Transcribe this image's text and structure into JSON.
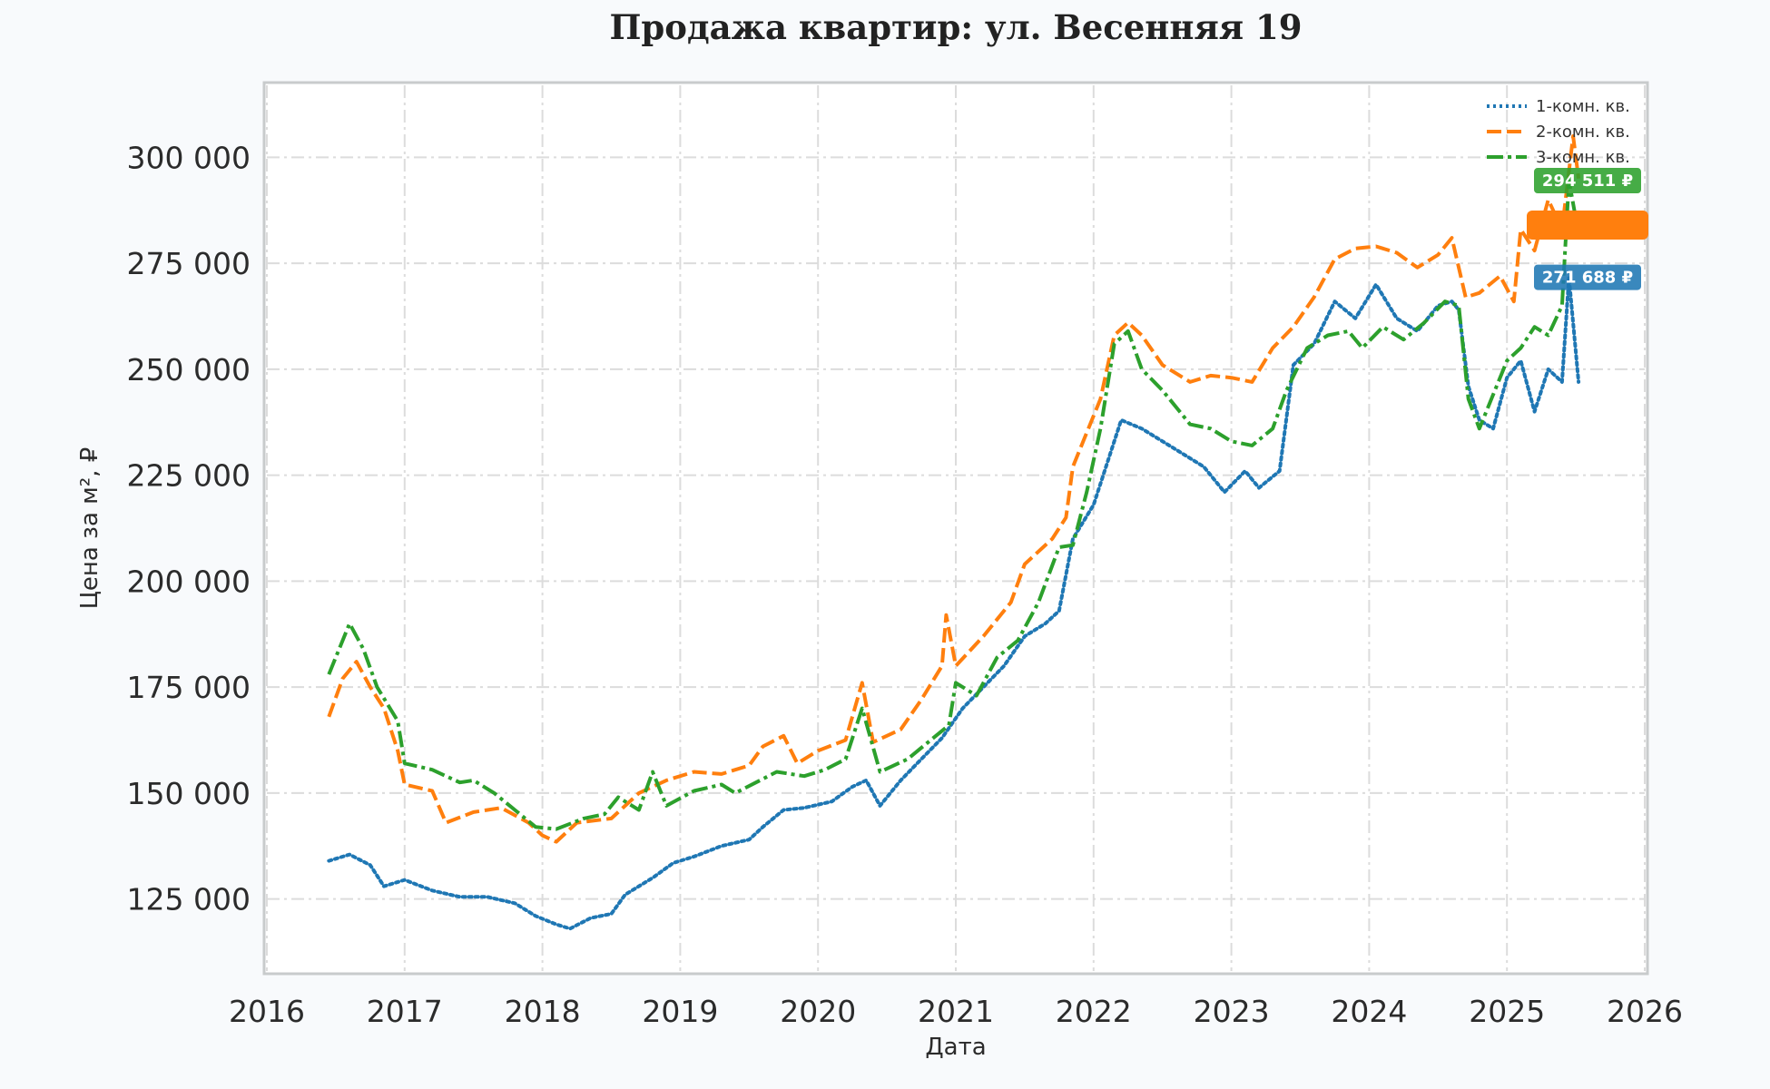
{
  "chart_data": {
    "type": "line",
    "title": "Продажа квартир: ул. Весенняя 19",
    "xlabel": "Дата",
    "ylabel": "Цена за м², ₽",
    "xlim": [
      2016,
      2026
    ],
    "ylim": [
      108000,
      317000
    ],
    "x_ticks": [
      "2016",
      "2017",
      "2018",
      "2019",
      "2020",
      "2021",
      "2022",
      "2023",
      "2024",
      "2025",
      "2026"
    ],
    "y_ticks": [
      125000,
      150000,
      175000,
      200000,
      225000,
      250000,
      275000,
      300000
    ],
    "y_tick_labels": [
      "125 000",
      "150 000",
      "175 000",
      "200 000",
      "225 000",
      "250 000",
      "275 000",
      "300 000"
    ],
    "grid": true,
    "legend_position": "top-right",
    "series": [
      {
        "name": "1-комн. кв.",
        "color": "#1f77b4",
        "style": "dotted",
        "end_label": "271 688 ₽",
        "points": [
          [
            2016.45,
            134000
          ],
          [
            2016.6,
            135500
          ],
          [
            2016.75,
            133000
          ],
          [
            2016.85,
            128000
          ],
          [
            2017.0,
            129500
          ],
          [
            2017.2,
            127000
          ],
          [
            2017.4,
            125500
          ],
          [
            2017.6,
            125500
          ],
          [
            2017.8,
            124000
          ],
          [
            2017.95,
            121000
          ],
          [
            2018.1,
            119000
          ],
          [
            2018.2,
            118000
          ],
          [
            2018.35,
            120500
          ],
          [
            2018.5,
            121500
          ],
          [
            2018.6,
            126000
          ],
          [
            2018.8,
            130000
          ],
          [
            2018.95,
            133500
          ],
          [
            2019.1,
            135000
          ],
          [
            2019.3,
            137500
          ],
          [
            2019.5,
            139000
          ],
          [
            2019.6,
            142000
          ],
          [
            2019.75,
            146000
          ],
          [
            2019.9,
            146500
          ],
          [
            2020.1,
            148000
          ],
          [
            2020.25,
            151500
          ],
          [
            2020.35,
            153000
          ],
          [
            2020.45,
            147000
          ],
          [
            2020.6,
            153000
          ],
          [
            2020.75,
            158000
          ],
          [
            2020.9,
            163000
          ],
          [
            2021.05,
            170000
          ],
          [
            2021.2,
            175000
          ],
          [
            2021.35,
            180000
          ],
          [
            2021.5,
            187000
          ],
          [
            2021.65,
            190000
          ],
          [
            2021.75,
            193000
          ],
          [
            2021.85,
            210000
          ],
          [
            2022.0,
            218000
          ],
          [
            2022.1,
            228000
          ],
          [
            2022.2,
            238000
          ],
          [
            2022.35,
            236000
          ],
          [
            2022.5,
            233000
          ],
          [
            2022.65,
            230000
          ],
          [
            2022.8,
            227000
          ],
          [
            2022.95,
            221000
          ],
          [
            2023.1,
            226000
          ],
          [
            2023.2,
            222000
          ],
          [
            2023.35,
            226000
          ],
          [
            2023.45,
            251000
          ],
          [
            2023.6,
            256000
          ],
          [
            2023.75,
            266000
          ],
          [
            2023.9,
            262000
          ],
          [
            2024.05,
            270000
          ],
          [
            2024.2,
            262000
          ],
          [
            2024.35,
            259000
          ],
          [
            2024.5,
            265000
          ],
          [
            2024.6,
            266000
          ],
          [
            2024.65,
            264000
          ],
          [
            2024.72,
            246000
          ],
          [
            2024.8,
            238000
          ],
          [
            2024.9,
            236000
          ],
          [
            2025.0,
            248000
          ],
          [
            2025.1,
            252000
          ],
          [
            2025.2,
            240000
          ],
          [
            2025.3,
            250000
          ],
          [
            2025.4,
            247000
          ],
          [
            2025.45,
            271688
          ],
          [
            2025.52,
            247000
          ]
        ]
      },
      {
        "name": "2-комн. кв.",
        "color": "#ff7f0e",
        "style": "dashed",
        "end_label": "",
        "points": [
          [
            2016.45,
            168000
          ],
          [
            2016.55,
            177000
          ],
          [
            2016.65,
            181000
          ],
          [
            2016.75,
            175000
          ],
          [
            2016.85,
            170000
          ],
          [
            2016.95,
            160000
          ],
          [
            2017.0,
            152000
          ],
          [
            2017.2,
            150500
          ],
          [
            2017.3,
            143000
          ],
          [
            2017.5,
            145500
          ],
          [
            2017.7,
            146500
          ],
          [
            2017.9,
            143000
          ],
          [
            2018.0,
            140000
          ],
          [
            2018.1,
            138500
          ],
          [
            2018.25,
            143000
          ],
          [
            2018.5,
            144000
          ],
          [
            2018.7,
            150000
          ],
          [
            2018.9,
            153000
          ],
          [
            2019.1,
            155000
          ],
          [
            2019.3,
            154500
          ],
          [
            2019.5,
            156500
          ],
          [
            2019.6,
            161000
          ],
          [
            2019.75,
            163500
          ],
          [
            2019.85,
            157000
          ],
          [
            2020.0,
            160000
          ],
          [
            2020.2,
            162500
          ],
          [
            2020.32,
            176000
          ],
          [
            2020.4,
            162000
          ],
          [
            2020.6,
            165000
          ],
          [
            2020.75,
            172000
          ],
          [
            2020.9,
            180000
          ],
          [
            2020.93,
            192000
          ],
          [
            2021.0,
            180000
          ],
          [
            2021.2,
            187000
          ],
          [
            2021.4,
            195000
          ],
          [
            2021.5,
            204000
          ],
          [
            2021.7,
            210000
          ],
          [
            2021.8,
            215000
          ],
          [
            2021.85,
            227000
          ],
          [
            2021.95,
            235000
          ],
          [
            2022.05,
            243000
          ],
          [
            2022.15,
            258000
          ],
          [
            2022.25,
            261000
          ],
          [
            2022.35,
            258000
          ],
          [
            2022.5,
            251000
          ],
          [
            2022.7,
            247000
          ],
          [
            2022.85,
            248500
          ],
          [
            2023.0,
            248000
          ],
          [
            2023.15,
            247000
          ],
          [
            2023.3,
            255000
          ],
          [
            2023.45,
            260000
          ],
          [
            2023.6,
            267000
          ],
          [
            2023.75,
            276000
          ],
          [
            2023.9,
            278500
          ],
          [
            2024.05,
            279000
          ],
          [
            2024.2,
            277500
          ],
          [
            2024.35,
            274000
          ],
          [
            2024.5,
            277000
          ],
          [
            2024.6,
            281000
          ],
          [
            2024.7,
            267000
          ],
          [
            2024.8,
            268000
          ],
          [
            2024.95,
            272000
          ],
          [
            2025.05,
            266000
          ],
          [
            2025.1,
            283000
          ],
          [
            2025.2,
            278000
          ],
          [
            2025.3,
            290000
          ],
          [
            2025.4,
            283000
          ],
          [
            2025.48,
            305000
          ],
          [
            2025.52,
            295000
          ]
        ]
      },
      {
        "name": "3-комн. кв.",
        "color": "#2ca02c",
        "style": "dashdot",
        "end_label": "294 511 ₽",
        "points": [
          [
            2016.45,
            178000
          ],
          [
            2016.6,
            190000
          ],
          [
            2016.7,
            184000
          ],
          [
            2016.8,
            175000
          ],
          [
            2016.95,
            167000
          ],
          [
            2017.0,
            157000
          ],
          [
            2017.2,
            155500
          ],
          [
            2017.4,
            152500
          ],
          [
            2017.5,
            153000
          ],
          [
            2017.65,
            150000
          ],
          [
            2017.8,
            146000
          ],
          [
            2017.95,
            142000
          ],
          [
            2018.1,
            141500
          ],
          [
            2018.3,
            144000
          ],
          [
            2018.45,
            145000
          ],
          [
            2018.55,
            149000
          ],
          [
            2018.7,
            146000
          ],
          [
            2018.8,
            155000
          ],
          [
            2018.9,
            147000
          ],
          [
            2019.1,
            150500
          ],
          [
            2019.3,
            152000
          ],
          [
            2019.4,
            150000
          ],
          [
            2019.55,
            152500
          ],
          [
            2019.7,
            155000
          ],
          [
            2019.9,
            154000
          ],
          [
            2020.05,
            155500
          ],
          [
            2020.2,
            158000
          ],
          [
            2020.32,
            170000
          ],
          [
            2020.45,
            155000
          ],
          [
            2020.65,
            158000
          ],
          [
            2020.8,
            162000
          ],
          [
            2020.95,
            166000
          ],
          [
            2021.0,
            176000
          ],
          [
            2021.15,
            173000
          ],
          [
            2021.3,
            182000
          ],
          [
            2021.45,
            186000
          ],
          [
            2021.6,
            195000
          ],
          [
            2021.75,
            208000
          ],
          [
            2021.85,
            208500
          ],
          [
            2021.95,
            221000
          ],
          [
            2022.05,
            236000
          ],
          [
            2022.15,
            256000
          ],
          [
            2022.25,
            259000
          ],
          [
            2022.35,
            250000
          ],
          [
            2022.5,
            245000
          ],
          [
            2022.7,
            237000
          ],
          [
            2022.85,
            236000
          ],
          [
            2023.0,
            233000
          ],
          [
            2023.15,
            232000
          ],
          [
            2023.3,
            236000
          ],
          [
            2023.4,
            245000
          ],
          [
            2023.55,
            255000
          ],
          [
            2023.7,
            258000
          ],
          [
            2023.85,
            259000
          ],
          [
            2023.95,
            255000
          ],
          [
            2024.1,
            260000
          ],
          [
            2024.25,
            257000
          ],
          [
            2024.4,
            261000
          ],
          [
            2024.55,
            266000
          ],
          [
            2024.65,
            265000
          ],
          [
            2024.72,
            243000
          ],
          [
            2024.8,
            236000
          ],
          [
            2024.9,
            244000
          ],
          [
            2025.0,
            252000
          ],
          [
            2025.1,
            255000
          ],
          [
            2025.2,
            260000
          ],
          [
            2025.3,
            258000
          ],
          [
            2025.4,
            265000
          ],
          [
            2025.45,
            294511
          ],
          [
            2025.52,
            282000
          ]
        ]
      }
    ]
  }
}
